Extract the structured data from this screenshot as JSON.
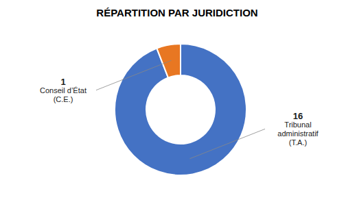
{
  "chart_data": {
    "type": "donut",
    "title": "RÉPARTITION PAR JURIDICTION",
    "categories": [
      "Tribunal\nadministratif\n(T.A.)",
      "Conseil d’État\n(C.E.)"
    ],
    "values": [
      16,
      1
    ],
    "colors": [
      "#4472c4",
      "#e87722"
    ],
    "data_labels": true
  }
}
